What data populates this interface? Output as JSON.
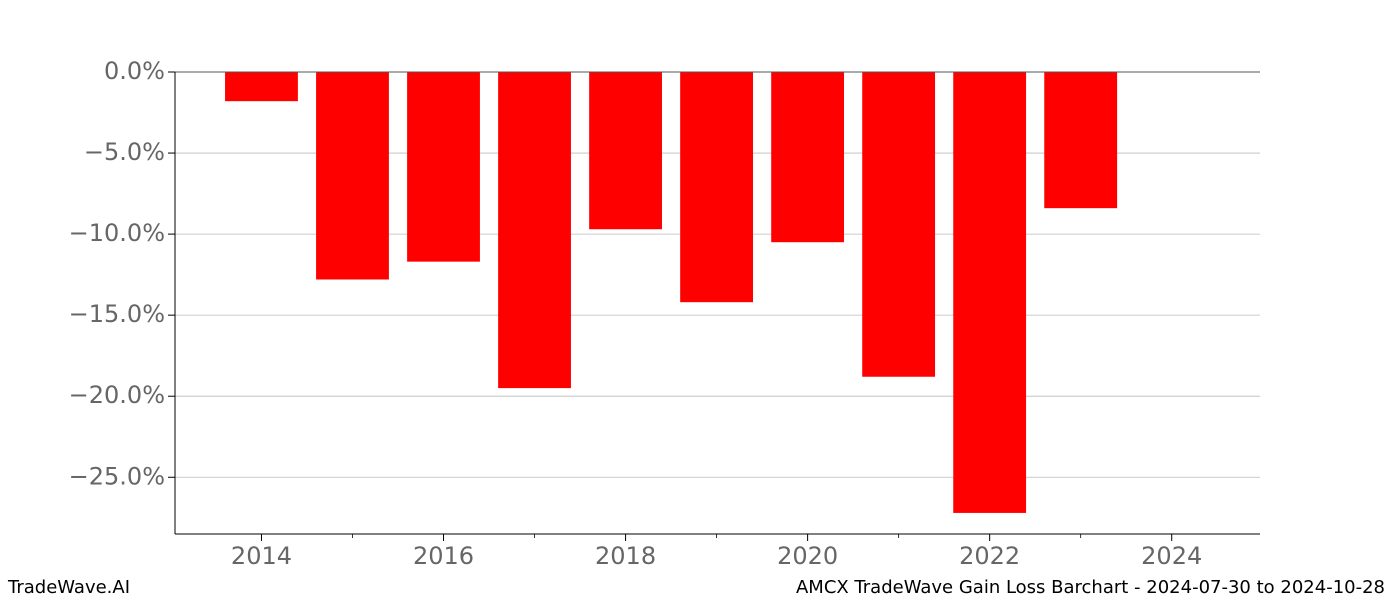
{
  "chart_data": {
    "type": "bar",
    "x": [
      2014,
      2015,
      2016,
      2017,
      2018,
      2019,
      2020,
      2021,
      2022,
      2023
    ],
    "values": [
      -1.8,
      -12.8,
      -11.7,
      -19.5,
      -9.7,
      -14.2,
      -10.5,
      -18.8,
      -27.2,
      -8.4
    ],
    "color": "#ff0000",
    "xlim": [
      2013.05,
      2024.97
    ],
    "xticks": [
      2014,
      2016,
      2018,
      2020,
      2022,
      2024
    ],
    "x_minor_ticks": [
      2015,
      2017,
      2019,
      2021,
      2023
    ],
    "ylim": [
      -28.5,
      0
    ],
    "yticks": [
      {
        "value": 0,
        "label": "0.0%"
      },
      {
        "value": -5,
        "label": "−5.0%"
      },
      {
        "value": -10,
        "label": "−10.0%"
      },
      {
        "value": -15,
        "label": "−15.0%"
      },
      {
        "value": -20,
        "label": "−20.0%"
      },
      {
        "value": -25,
        "label": "−25.0%"
      }
    ],
    "grid": true,
    "footer_left": "TradeWave.AI",
    "footer_right": "AMCX TradeWave Gain Loss Barchart - 2024-07-30 to 2024-10-28"
  }
}
